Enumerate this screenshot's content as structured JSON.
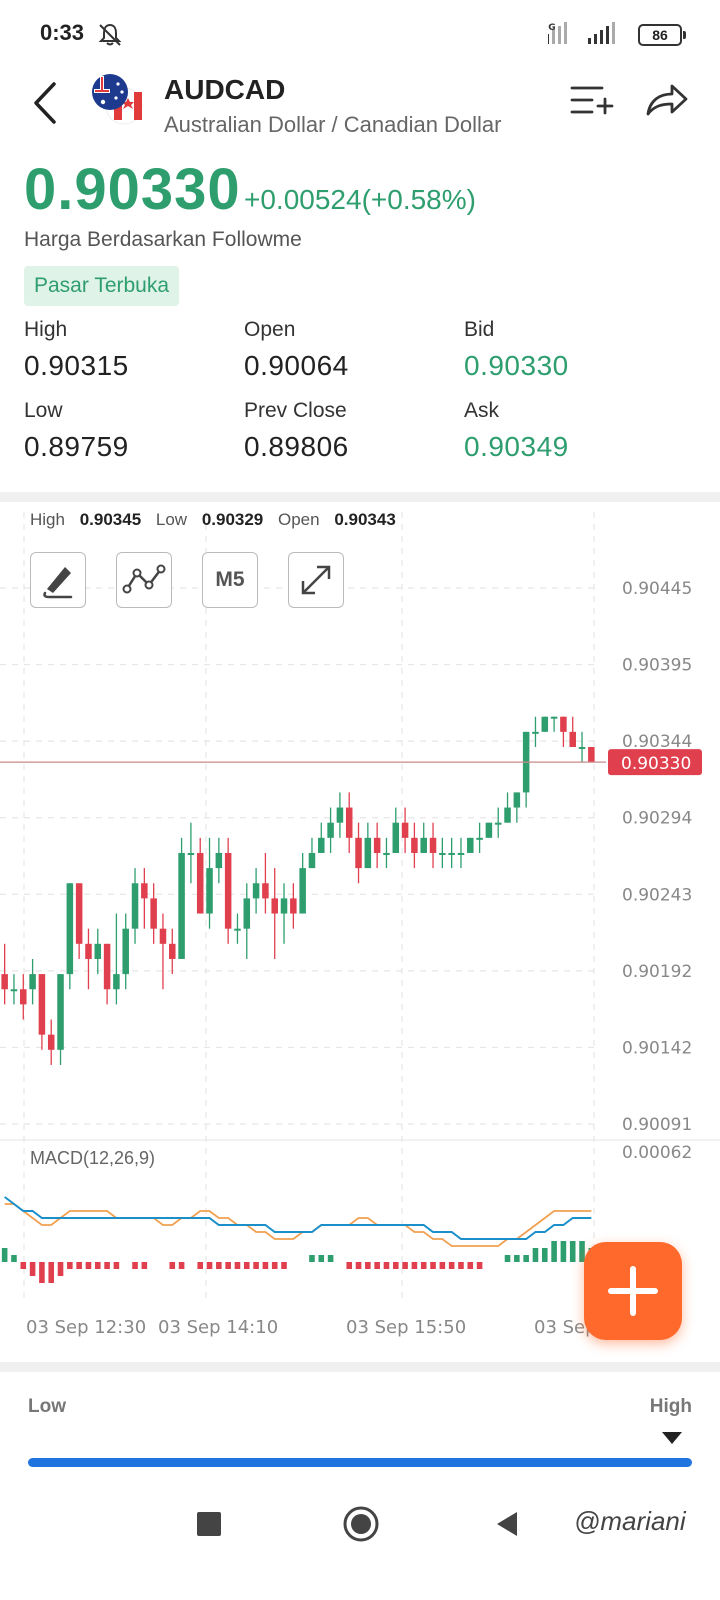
{
  "status": {
    "time": "0:33",
    "network": "4G",
    "battery": "86"
  },
  "header": {
    "symbol": "AUDCAD",
    "name": "Australian Dollar / Canadian Dollar"
  },
  "quote": {
    "price": "0.90330",
    "change": "+0.00524(+0.58%)",
    "source": "Harga Berdasarkan Followme",
    "market_status": "Pasar Terbuka"
  },
  "stats": {
    "high_label": "High",
    "high": "0.90315",
    "open_label": "Open",
    "open": "0.90064",
    "bid_label": "Bid",
    "bid": "0.90330",
    "low_label": "Low",
    "low": "0.89759",
    "prev_close_label": "Prev Close",
    "prev_close": "0.89806",
    "ask_label": "Ask",
    "ask": "0.90349"
  },
  "chart": {
    "ohlc": {
      "high_label": "High",
      "high": "0.90345",
      "low_label": "Low",
      "low": "0.90329",
      "open_label": "Open",
      "open": "0.90343"
    },
    "timeframe": "M5",
    "macd_label": "MACD(12,26,9)",
    "colors": {
      "up": "#2f9e6f",
      "down": "#e0404e",
      "macd": "#1a8fc9",
      "signal": "#f0a050",
      "price_line": "#c98a8a"
    }
  },
  "chart_data": {
    "type": "candlestick",
    "y_ticks": [
      "0.90445",
      "0.90395",
      "0.90344",
      "0.90294",
      "0.90243",
      "0.90192",
      "0.90142",
      "0.90091"
    ],
    "current_price_label": "0.90330",
    "x_ticks": [
      "03 Sep  12:30",
      "03 Sep  14:10",
      "03 Sep  15:50",
      "03 Sep"
    ],
    "macd_top_label": "0.00062",
    "ylim": [
      0.90091,
      0.90445
    ],
    "candles": [
      [
        0.9019,
        0.9018,
        0.9021,
        0.9017
      ],
      [
        0.9018,
        0.9018,
        0.9019,
        0.9017
      ],
      [
        0.9018,
        0.9017,
        0.9019,
        0.9016
      ],
      [
        0.9018,
        0.9019,
        0.902,
        0.9017
      ],
      [
        0.9019,
        0.9015,
        0.9019,
        0.9014
      ],
      [
        0.9015,
        0.9014,
        0.9016,
        0.9013
      ],
      [
        0.9014,
        0.9019,
        0.9019,
        0.9013
      ],
      [
        0.9019,
        0.9025,
        0.9025,
        0.9018
      ],
      [
        0.9025,
        0.9021,
        0.9025,
        0.902
      ],
      [
        0.9021,
        0.902,
        0.9022,
        0.9018
      ],
      [
        0.902,
        0.9021,
        0.9022,
        0.9019
      ],
      [
        0.9021,
        0.9018,
        0.9021,
        0.9017
      ],
      [
        0.9018,
        0.9019,
        0.9023,
        0.9017
      ],
      [
        0.9019,
        0.9022,
        0.9023,
        0.9018
      ],
      [
        0.9022,
        0.9025,
        0.9026,
        0.9021
      ],
      [
        0.9025,
        0.9024,
        0.9026,
        0.9022
      ],
      [
        0.9024,
        0.9022,
        0.9025,
        0.9021
      ],
      [
        0.9022,
        0.9021,
        0.9023,
        0.9018
      ],
      [
        0.9021,
        0.902,
        0.9022,
        0.9019
      ],
      [
        0.902,
        0.9027,
        0.9028,
        0.902
      ],
      [
        0.9027,
        0.9027,
        0.9029,
        0.9025
      ],
      [
        0.9027,
        0.9023,
        0.9028,
        0.9023
      ],
      [
        0.9023,
        0.9026,
        0.9028,
        0.9022
      ],
      [
        0.9026,
        0.9027,
        0.9028,
        0.9025
      ],
      [
        0.9027,
        0.9022,
        0.9028,
        0.9021
      ],
      [
        0.9022,
        0.9022,
        0.9023,
        0.9021
      ],
      [
        0.9022,
        0.9024,
        0.9025,
        0.902
      ],
      [
        0.9024,
        0.9025,
        0.9026,
        0.9023
      ],
      [
        0.9025,
        0.9024,
        0.9027,
        0.9023
      ],
      [
        0.9024,
        0.9023,
        0.9026,
        0.902
      ],
      [
        0.9023,
        0.9024,
        0.9025,
        0.9021
      ],
      [
        0.9024,
        0.9023,
        0.9025,
        0.9022
      ],
      [
        0.9023,
        0.9026,
        0.9027,
        0.9023
      ],
      [
        0.9026,
        0.9027,
        0.9028,
        0.9026
      ],
      [
        0.9027,
        0.9028,
        0.9029,
        0.9027
      ],
      [
        0.9028,
        0.9029,
        0.903,
        0.9027
      ],
      [
        0.9029,
        0.903,
        0.9031,
        0.9028
      ],
      [
        0.903,
        0.9028,
        0.9031,
        0.9027
      ],
      [
        0.9028,
        0.9026,
        0.9029,
        0.9025
      ],
      [
        0.9026,
        0.9028,
        0.9029,
        0.9026
      ],
      [
        0.9028,
        0.9027,
        0.9029,
        0.9026
      ],
      [
        0.9027,
        0.9027,
        0.9028,
        0.9026
      ],
      [
        0.9027,
        0.9029,
        0.903,
        0.9027
      ],
      [
        0.9029,
        0.9028,
        0.903,
        0.9027
      ],
      [
        0.9028,
        0.9027,
        0.9029,
        0.9026
      ],
      [
        0.9027,
        0.9028,
        0.9029,
        0.9027
      ],
      [
        0.9028,
        0.9027,
        0.9029,
        0.9026
      ],
      [
        0.9027,
        0.9027,
        0.9028,
        0.9026
      ],
      [
        0.9027,
        0.9027,
        0.9028,
        0.9026
      ],
      [
        0.9027,
        0.9027,
        0.9028,
        0.9026
      ],
      [
        0.9027,
        0.9028,
        0.9028,
        0.9027
      ],
      [
        0.9028,
        0.9028,
        0.9029,
        0.9027
      ],
      [
        0.9028,
        0.9029,
        0.9029,
        0.9028
      ],
      [
        0.9029,
        0.9029,
        0.903,
        0.9028
      ],
      [
        0.9029,
        0.903,
        0.9031,
        0.9029
      ],
      [
        0.903,
        0.9031,
        0.9031,
        0.9029
      ],
      [
        0.9031,
        0.9035,
        0.9035,
        0.903
      ],
      [
        0.9035,
        0.9035,
        0.9036,
        0.9034
      ],
      [
        0.9035,
        0.9036,
        0.9036,
        0.9035
      ],
      [
        0.9036,
        0.9036,
        0.9036,
        0.9035
      ],
      [
        0.9036,
        0.9035,
        0.9036,
        0.9034
      ],
      [
        0.9035,
        0.9034,
        0.9036,
        0.9034
      ],
      [
        0.9034,
        0.9034,
        0.9035,
        0.9033
      ],
      [
        0.9034,
        0.9033,
        0.9034,
        0.9033
      ]
    ],
    "macd_hist": [
      2,
      1,
      -1,
      -2,
      -3,
      -3,
      -2,
      -1,
      -1,
      -1,
      -1,
      -1,
      -1,
      0,
      -1,
      -1,
      0,
      0,
      -1,
      -1,
      0,
      -1,
      -1,
      -1,
      -1,
      -1,
      -1,
      -1,
      -1,
      -1,
      -1,
      0,
      0,
      1,
      1,
      1,
      0,
      -1,
      -1,
      -1,
      -1,
      -1,
      -1,
      -1,
      -1,
      -1,
      -1,
      -1,
      -1,
      -1,
      -1,
      -1,
      0,
      0,
      1,
      1,
      1,
      2,
      2,
      3,
      3,
      3,
      3,
      2
    ],
    "macd_line": [
      5,
      4,
      3,
      3,
      2,
      2,
      2,
      2,
      2,
      2,
      2,
      2,
      2,
      2,
      2,
      2,
      2,
      2,
      2,
      2,
      2,
      2,
      2,
      1,
      1,
      1,
      1,
      1,
      1,
      0,
      0,
      0,
      0,
      0,
      1,
      1,
      1,
      1,
      1,
      1,
      1,
      1,
      1,
      1,
      1,
      1,
      0,
      0,
      0,
      -1,
      -1,
      -1,
      -1,
      -1,
      -1,
      -1,
      -1,
      0,
      0,
      1,
      1,
      2,
      2,
      2
    ],
    "signal_line": [
      4,
      4,
      3,
      2,
      1,
      1,
      2,
      3,
      3,
      3,
      3,
      3,
      2,
      2,
      2,
      2,
      2,
      1,
      1,
      2,
      2,
      3,
      3,
      2,
      2,
      1,
      1,
      0,
      0,
      -1,
      -1,
      -1,
      0,
      0,
      1,
      1,
      1,
      1,
      2,
      2,
      1,
      1,
      1,
      1,
      0,
      0,
      -1,
      -1,
      -2,
      -2,
      -2,
      -2,
      -2,
      -2,
      -1,
      -1,
      0,
      1,
      2,
      3,
      3,
      3,
      3,
      3
    ]
  },
  "range": {
    "low_label": "Low",
    "high_label": "High",
    "position": 0.97
  },
  "watermark": "@mariani"
}
